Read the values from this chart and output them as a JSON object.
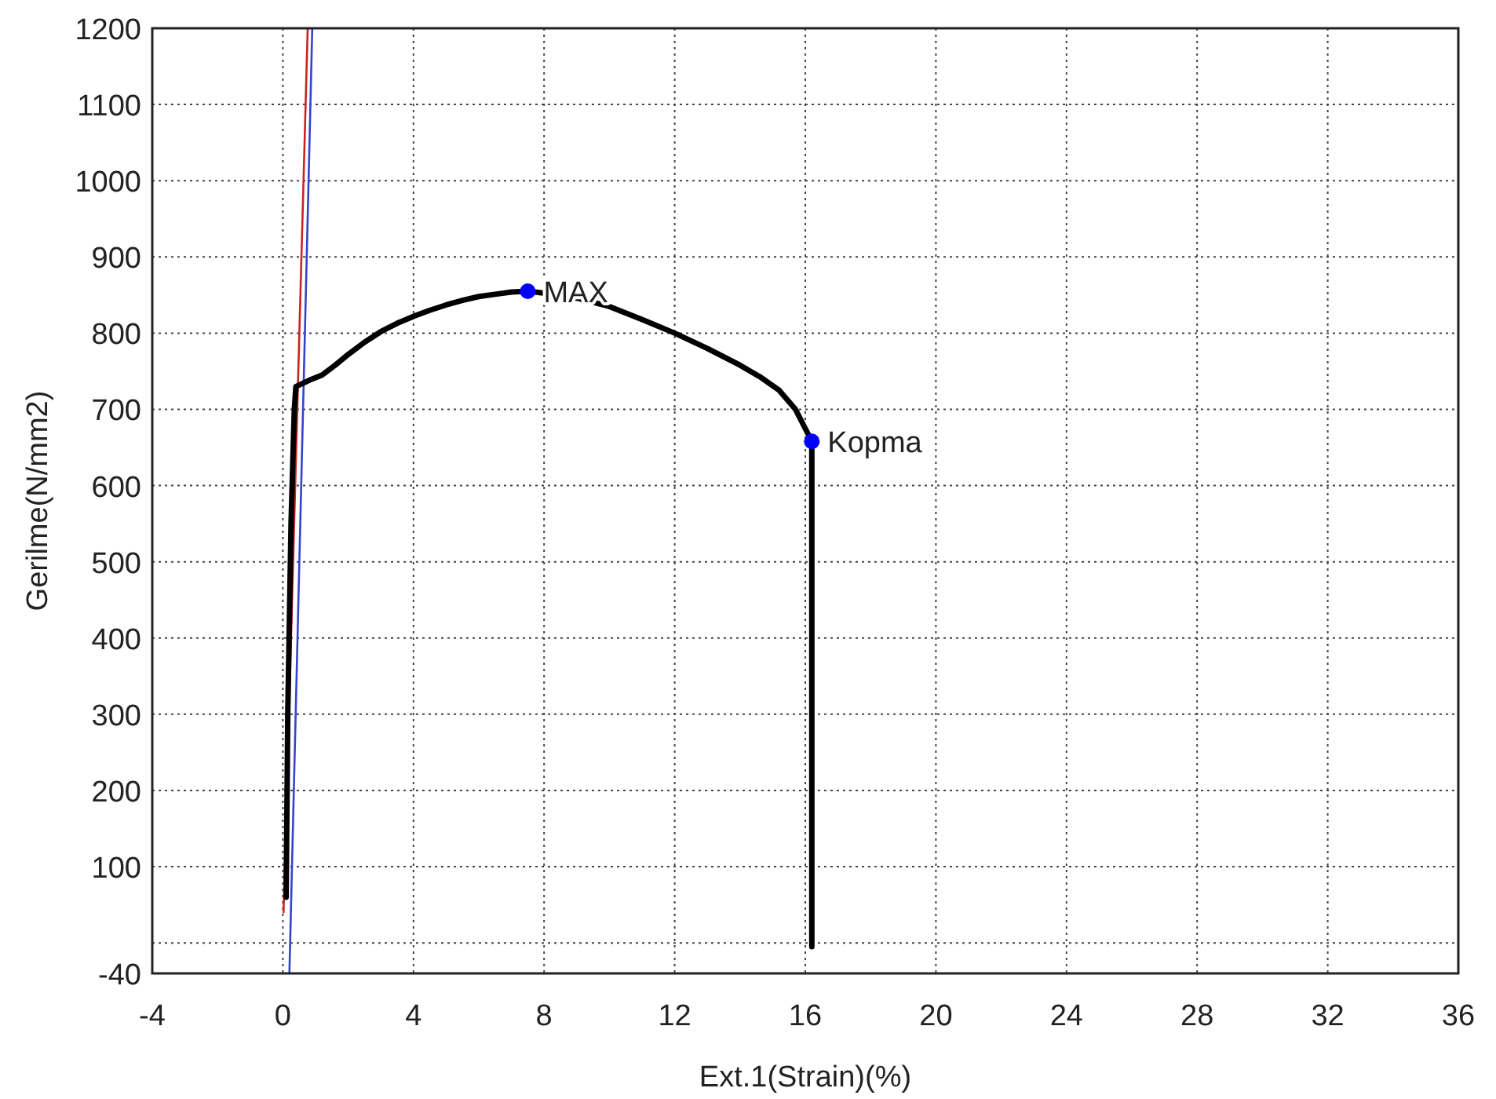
{
  "chart_data": {
    "type": "line",
    "xlabel": "Ext.1(Strain)(%)",
    "ylabel": "Gerilme(N/mm2)",
    "xlim": [
      -4,
      36
    ],
    "ylim": [
      -40,
      1200
    ],
    "xticks": [
      -4,
      0,
      4,
      8,
      12,
      16,
      20,
      24,
      28,
      32,
      36
    ],
    "yticks": [
      -40,
      {
        "value": 0,
        "label": null
      },
      100,
      200,
      300,
      400,
      500,
      600,
      700,
      800,
      900,
      1000,
      1100,
      1200
    ],
    "grid": true,
    "series": [
      {
        "color": "#cc2222",
        "x": [
          0.02,
          0.76
        ],
        "values": [
          40,
          1200
        ]
      },
      {
        "color": "#3344cc",
        "x": [
          0.2,
          0.9
        ],
        "values": [
          -40,
          1200
        ]
      },
      {
        "color": "#000000",
        "x": [
          0.1,
          0.15,
          0.25,
          0.35,
          0.4,
          0.8,
          1.2,
          1.6,
          2,
          2.5,
          3,
          3.5,
          4,
          4.5,
          5,
          5.5,
          6,
          6.5,
          7,
          7.5,
          8.5,
          9,
          10,
          11,
          12,
          13,
          14,
          14.6,
          15.2,
          15.7,
          16.2,
          16.2
        ],
        "values": [
          60,
          300,
          550,
          700,
          730,
          738,
          745,
          758,
          772,
          788,
          802,
          813,
          822,
          830,
          837,
          843,
          848,
          851,
          854,
          855,
          850,
          846,
          835,
          818,
          800,
          780,
          758,
          743,
          725,
          700,
          658,
          -5
        ]
      },
      {
        "type": "scatter",
        "color": "#0000ff",
        "marker": "circle",
        "x": [
          7.5,
          16.2
        ],
        "values": [
          855,
          658
        ]
      }
    ],
    "annotations": [
      {
        "text": "MAX",
        "x": 7.5,
        "y": 855
      },
      {
        "text": "Kopma",
        "x": 16.2,
        "y": 658
      }
    ]
  }
}
